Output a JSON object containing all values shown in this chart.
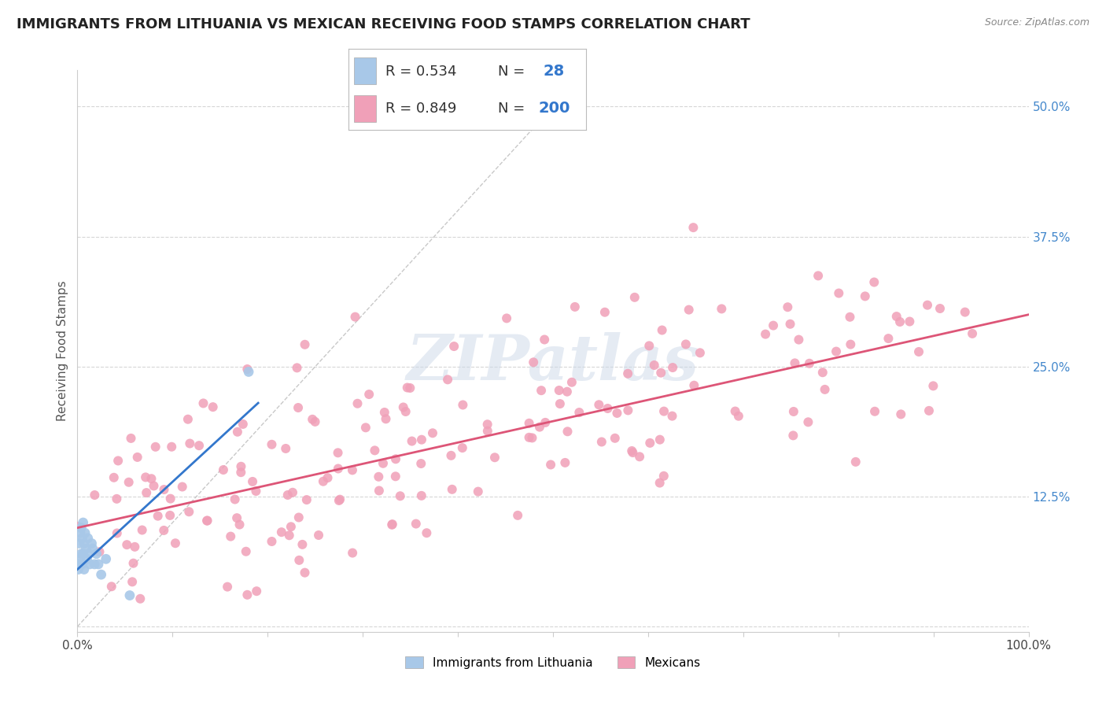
{
  "title": "IMMIGRANTS FROM LITHUANIA VS MEXICAN RECEIVING FOOD STAMPS CORRELATION CHART",
  "source": "Source: ZipAtlas.com",
  "ylabel": "Receiving Food Stamps",
  "xlim": [
    0.0,
    1.0
  ],
  "ylim": [
    -0.005,
    0.535
  ],
  "xticks": [
    0.0,
    0.1,
    0.2,
    0.3,
    0.4,
    0.5,
    0.6,
    0.7,
    0.8,
    0.9,
    1.0
  ],
  "xtick_labels": [
    "0.0%",
    "",
    "",
    "",
    "",
    "",
    "",
    "",
    "",
    "",
    "100.0%"
  ],
  "yticks": [
    0.0,
    0.125,
    0.25,
    0.375,
    0.5
  ],
  "ytick_labels": [
    "",
    "12.5%",
    "25.0%",
    "37.5%",
    "50.0%"
  ],
  "legend_label1": "Immigrants from Lithuania",
  "legend_label2": "Mexicans",
  "color_lithuania": "#a8c8e8",
  "color_mexico": "#f0a0b8",
  "color_line_lithuania": "#3377cc",
  "color_line_mexico": "#dd5577",
  "watermark": "ZIPatlas",
  "background_color": "#ffffff",
  "grid_color": "#cccccc",
  "title_fontsize": 13,
  "axis_label_fontsize": 11,
  "tick_fontsize": 11,
  "lithuania_x": [
    0.001,
    0.002,
    0.002,
    0.003,
    0.003,
    0.004,
    0.004,
    0.005,
    0.005,
    0.006,
    0.006,
    0.007,
    0.007,
    0.008,
    0.009,
    0.01,
    0.011,
    0.012,
    0.013,
    0.015,
    0.016,
    0.018,
    0.02,
    0.022,
    0.025,
    0.03,
    0.055,
    0.18
  ],
  "lithuania_y": [
    0.055,
    0.06,
    0.08,
    0.065,
    0.09,
    0.07,
    0.095,
    0.06,
    0.085,
    0.07,
    0.1,
    0.055,
    0.08,
    0.09,
    0.075,
    0.065,
    0.085,
    0.07,
    0.06,
    0.08,
    0.075,
    0.06,
    0.07,
    0.06,
    0.05,
    0.065,
    0.03,
    0.245
  ],
  "lith_line_x": [
    0.0,
    0.19
  ],
  "lith_line_y": [
    0.055,
    0.215
  ],
  "mex_line_x": [
    0.0,
    1.0
  ],
  "mex_line_y": [
    0.095,
    0.3
  ],
  "ref_line_color": "#bbbbbb",
  "ref_line_style": "--",
  "stat_box_r1": "R = 0.534",
  "stat_box_n1": "28",
  "stat_box_r2": "R = 0.849",
  "stat_box_n2": "200"
}
